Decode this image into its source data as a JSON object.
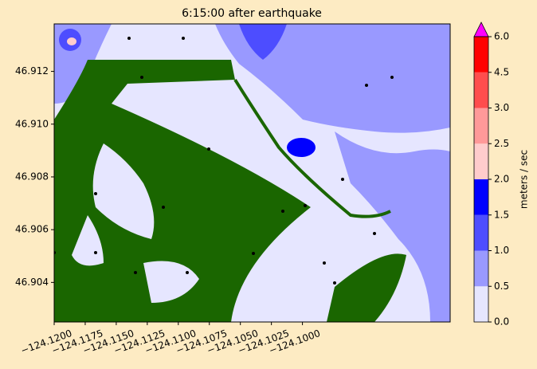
{
  "chart_data": {
    "type": "contour-map",
    "title": "6:15:00 after earthquake",
    "xlim": [
      -124.12,
      -124.0881
    ],
    "xticks": [
      {
        "value": -124.12,
        "label": "−124.1200"
      },
      {
        "value": -124.1175,
        "label": "−124.1175"
      },
      {
        "value": -124.115,
        "label": "−124.1150"
      },
      {
        "value": -124.1125,
        "label": "−124.1125"
      },
      {
        "value": -124.11,
        "label": "−124.1100"
      },
      {
        "value": -124.1075,
        "label": "−124.1075"
      },
      {
        "value": -124.105,
        "label": "−124.1050"
      },
      {
        "value": -124.1025,
        "label": "−124.1025"
      },
      {
        "value": -124.1,
        "label": "−124.1000"
      }
    ],
    "ylim": [
      46.9025,
      46.9138
    ],
    "yticks": [
      46.904,
      46.906,
      46.908,
      {
        "value": 46.91,
        "label": "46.910"
      },
      46.912
    ],
    "colorbar": {
      "label": "meters / sec",
      "levels": [
        {
          "value": 0,
          "label": "0.0"
        },
        0.5,
        {
          "value": 1,
          "label": "1.0"
        },
        1.5,
        {
          "value": 2,
          "label": "2.0"
        },
        2.5,
        {
          "value": 3,
          "label": "3.0"
        },
        4.5,
        {
          "value": 6,
          "label": "6.0"
        }
      ],
      "colors": [
        "#e6e6ff",
        "#9999ff",
        "#4d4dff",
        "#0000ff",
        "#ffcccc",
        "#ff9999",
        "#ff4d4d",
        "#ff0000"
      ],
      "extend_color": "#ff00ff"
    }
  }
}
